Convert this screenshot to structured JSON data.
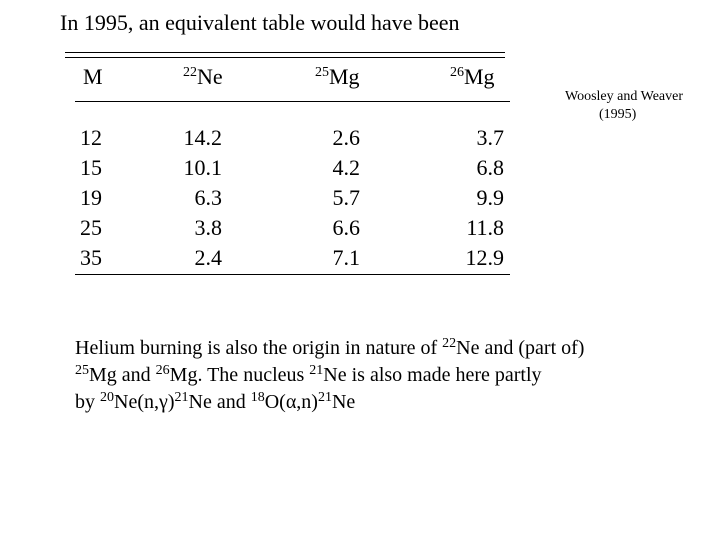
{
  "title": "In 1995, an equivalent table would have been",
  "table": {
    "headers": [
      {
        "mass": "",
        "element": "M"
      },
      {
        "mass": "22",
        "element": "Ne"
      },
      {
        "mass": "25",
        "element": "Mg"
      },
      {
        "mass": "26",
        "element": "Mg"
      }
    ],
    "columns": [
      [
        "12",
        "15",
        "19",
        "25",
        "35"
      ],
      [
        "14.2",
        "10.1",
        "6.3",
        "3.8",
        "2.4"
      ],
      [
        "2.6",
        "4.2",
        "5.7",
        "6.6",
        "7.1"
      ],
      [
        "3.7",
        "6.8",
        "9.9",
        "11.8",
        "12.9"
      ]
    ]
  },
  "credit": {
    "authors": "Woosley and Weaver",
    "year": "(1995)"
  },
  "paragraph": {
    "l1_a": "Helium burning is also the origin in nature of ",
    "l1_ne_mass": "22",
    "l1_b": "Ne and (part of)",
    "l2_mg25_mass": "25",
    "l2_a": "Mg and ",
    "l2_mg26_mass": "26",
    "l2_b": "Mg. The nucleus ",
    "l2_ne21_mass": "21",
    "l2_c": "Ne is also made here partly",
    "l3_a": "by ",
    "l3_ne20_mass": "20",
    "l3_b": "Ne(n,",
    "l3_gamma": "γ",
    "l3_c": ")",
    "l3_ne21_mass": "21",
    "l3_d": "Ne and ",
    "l3_o18_mass": "18",
    "l3_e": "O(",
    "l3_alpha": "α",
    "l3_f": ",n)",
    "l3_ne21b_mass": "21",
    "l3_g": "Ne"
  }
}
